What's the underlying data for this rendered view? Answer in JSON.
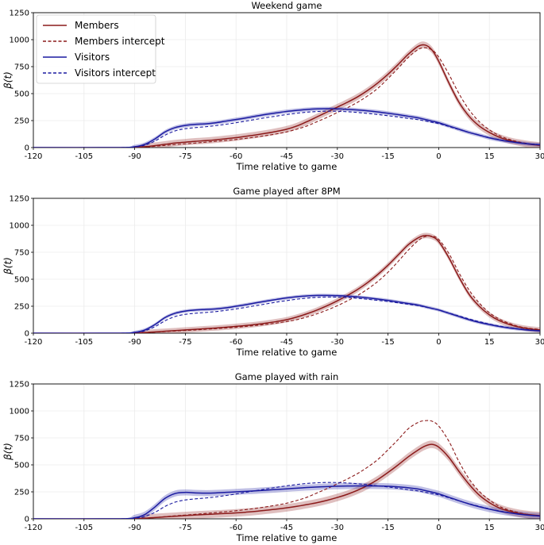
{
  "chart_data": [
    {
      "type": "line",
      "title": "Weekend game",
      "xlabel": "Time relative to game",
      "ylabel": "β(t)",
      "xlim": [
        -120,
        30
      ],
      "ylim": [
        0,
        1250
      ],
      "xticks": [
        -120,
        -105,
        -90,
        -75,
        -60,
        -45,
        -30,
        -15,
        0,
        15,
        30
      ],
      "yticks": [
        0,
        250,
        500,
        750,
        1000,
        1250
      ],
      "grid": true,
      "legend": "top-left",
      "x": [
        -120,
        -95,
        -90,
        -87,
        -84,
        -81,
        -78,
        -75,
        -72,
        -69,
        -66,
        -63,
        -60,
        -57,
        -54,
        -51,
        -48,
        -45,
        -42,
        -39,
        -36,
        -33,
        -30,
        -27,
        -24,
        -21,
        -18,
        -15,
        -12,
        -9,
        -6,
        -4,
        -2,
        0,
        3,
        6,
        9,
        12,
        15,
        18,
        21,
        24,
        27,
        30
      ],
      "series": [
        {
          "name": "Members",
          "color": "#8b1a1a",
          "dash": "solid",
          "band": 30,
          "values": [
            0,
            0,
            3,
            8,
            18,
            30,
            42,
            50,
            58,
            64,
            72,
            82,
            92,
            105,
            118,
            133,
            150,
            170,
            200,
            240,
            285,
            330,
            375,
            420,
            470,
            530,
            600,
            680,
            770,
            865,
            940,
            950,
            905,
            800,
            600,
            420,
            290,
            200,
            140,
            95,
            65,
            45,
            30,
            20
          ]
        },
        {
          "name": "Members intercept",
          "color": "#8b1a1a",
          "dash": "dashed",
          "values": [
            0,
            0,
            2,
            5,
            12,
            20,
            28,
            35,
            42,
            50,
            58,
            66,
            75,
            86,
            98,
            112,
            127,
            145,
            170,
            200,
            240,
            280,
            325,
            370,
            420,
            480,
            550,
            640,
            735,
            835,
            910,
            925,
            905,
            840,
            680,
            500,
            350,
            240,
            165,
            110,
            75,
            50,
            35,
            25
          ]
        },
        {
          "name": "Visitors",
          "color": "#1a1aa0",
          "dash": "solid",
          "band": 18,
          "values": [
            0,
            0,
            8,
            30,
            80,
            145,
            185,
            205,
            215,
            220,
            230,
            245,
            260,
            275,
            292,
            308,
            322,
            335,
            345,
            353,
            358,
            360,
            358,
            354,
            348,
            340,
            330,
            318,
            305,
            290,
            275,
            260,
            245,
            230,
            200,
            170,
            140,
            115,
            90,
            70,
            55,
            42,
            32,
            25
          ]
        },
        {
          "name": "Visitors intercept",
          "color": "#1a1aa0",
          "dash": "dashed",
          "values": [
            0,
            0,
            5,
            22,
            60,
            115,
            155,
            175,
            185,
            193,
            203,
            216,
            230,
            246,
            262,
            278,
            292,
            306,
            318,
            328,
            334,
            337,
            336,
            332,
            325,
            316,
            306,
            295,
            283,
            270,
            258,
            246,
            234,
            222,
            195,
            167,
            140,
            116,
            93,
            73,
            58,
            45,
            35,
            28
          ]
        }
      ]
    },
    {
      "type": "line",
      "title": "Game played after 8PM",
      "xlabel": "Time relative to game",
      "ylabel": "β(t)",
      "xlim": [
        -120,
        30
      ],
      "ylim": [
        0,
        1250
      ],
      "xticks": [
        -120,
        -105,
        -90,
        -75,
        -60,
        -45,
        -30,
        -15,
        0,
        15,
        30
      ],
      "yticks": [
        0,
        250,
        500,
        750,
        1000,
        1250
      ],
      "grid": true,
      "legend": "none",
      "x": [
        -120,
        -95,
        -90,
        -87,
        -84,
        -81,
        -78,
        -75,
        -72,
        -69,
        -66,
        -63,
        -60,
        -57,
        -54,
        -51,
        -48,
        -45,
        -42,
        -39,
        -36,
        -33,
        -30,
        -27,
        -24,
        -21,
        -18,
        -15,
        -12,
        -9,
        -6,
        -4,
        -2,
        0,
        3,
        6,
        9,
        12,
        15,
        18,
        21,
        24,
        27,
        30
      ],
      "series": [
        {
          "name": "Members",
          "color": "#8b1a1a",
          "dash": "solid",
          "band": 25,
          "values": [
            0,
            0,
            2,
            6,
            12,
            18,
            24,
            30,
            36,
            42,
            48,
            55,
            63,
            72,
            82,
            94,
            108,
            125,
            150,
            180,
            215,
            255,
            300,
            350,
            405,
            470,
            545,
            630,
            725,
            820,
            885,
            905,
            895,
            850,
            700,
            520,
            360,
            250,
            170,
            115,
            80,
            55,
            40,
            30
          ]
        },
        {
          "name": "Members intercept",
          "color": "#8b1a1a",
          "dash": "dashed",
          "values": [
            0,
            0,
            2,
            5,
            10,
            15,
            20,
            25,
            30,
            36,
            42,
            48,
            55,
            63,
            72,
            82,
            94,
            108,
            125,
            150,
            180,
            215,
            255,
            300,
            350,
            410,
            480,
            565,
            665,
            770,
            860,
            895,
            900,
            870,
            740,
            560,
            400,
            280,
            190,
            130,
            90,
            60,
            45,
            35
          ]
        },
        {
          "name": "Visitors",
          "color": "#1a1aa0",
          "dash": "solid",
          "band": 15,
          "values": [
            0,
            0,
            8,
            30,
            80,
            145,
            185,
            205,
            215,
            220,
            225,
            235,
            250,
            265,
            282,
            298,
            313,
            327,
            338,
            346,
            350,
            350,
            348,
            343,
            336,
            327,
            316,
            304,
            290,
            275,
            260,
            245,
            230,
            215,
            185,
            155,
            125,
            100,
            80,
            62,
            48,
            37,
            28,
            22
          ]
        },
        {
          "name": "Visitors intercept",
          "color": "#1a1aa0",
          "dash": "dashed",
          "values": [
            0,
            0,
            5,
            22,
            60,
            115,
            155,
            175,
            185,
            192,
            200,
            212,
            225,
            240,
            256,
            272,
            288,
            302,
            315,
            325,
            332,
            335,
            334,
            330,
            323,
            314,
            304,
            293,
            281,
            268,
            255,
            242,
            229,
            216,
            188,
            160,
            132,
            107,
            85,
            66,
            51,
            40,
            31,
            24
          ]
        }
      ]
    },
    {
      "type": "line",
      "title": "Game played with rain",
      "xlabel": "Time relative to game",
      "ylabel": "β(t)",
      "xlim": [
        -120,
        30
      ],
      "ylim": [
        0,
        1250
      ],
      "xticks": [
        -120,
        -105,
        -90,
        -75,
        -60,
        -45,
        -30,
        -15,
        0,
        15,
        30
      ],
      "yticks": [
        0,
        250,
        500,
        750,
        1000,
        1250
      ],
      "grid": true,
      "legend": "none",
      "x": [
        -120,
        -95,
        -90,
        -87,
        -84,
        -81,
        -78,
        -75,
        -72,
        -69,
        -66,
        -63,
        -60,
        -57,
        -54,
        -51,
        -48,
        -45,
        -42,
        -39,
        -36,
        -33,
        -30,
        -27,
        -24,
        -21,
        -18,
        -15,
        -12,
        -9,
        -6,
        -4,
        -2,
        0,
        3,
        6,
        9,
        12,
        15,
        18,
        21,
        24,
        27,
        30
      ],
      "series": [
        {
          "name": "Members",
          "color": "#8b1a1a",
          "dash": "solid",
          "band": 35,
          "values": [
            0,
            0,
            2,
            6,
            12,
            18,
            24,
            30,
            36,
            40,
            45,
            50,
            55,
            62,
            70,
            80,
            90,
            102,
            116,
            132,
            150,
            172,
            198,
            228,
            265,
            310,
            365,
            430,
            500,
            575,
            640,
            675,
            690,
            665,
            570,
            440,
            320,
            220,
            150,
            100,
            70,
            50,
            38,
            30
          ]
        },
        {
          "name": "Members intercept",
          "color": "#8b1a1a",
          "dash": "dashed",
          "values": [
            0,
            0,
            2,
            5,
            12,
            20,
            28,
            35,
            42,
            50,
            58,
            66,
            75,
            86,
            98,
            112,
            127,
            145,
            170,
            200,
            240,
            280,
            325,
            370,
            420,
            480,
            550,
            640,
            735,
            835,
            895,
            910,
            905,
            860,
            720,
            530,
            370,
            255,
            175,
            115,
            80,
            55,
            38,
            28
          ]
        },
        {
          "name": "Visitors",
          "color": "#1a1aa0",
          "dash": "solid",
          "band": 28,
          "values": [
            0,
            0,
            10,
            40,
            110,
            190,
            235,
            245,
            240,
            238,
            240,
            245,
            250,
            255,
            260,
            266,
            272,
            278,
            284,
            290,
            295,
            299,
            302,
            304,
            305,
            305,
            304,
            301,
            296,
            288,
            276,
            262,
            248,
            232,
            200,
            168,
            138,
            112,
            90,
            70,
            55,
            42,
            32,
            25
          ]
        },
        {
          "name": "Visitors intercept",
          "color": "#1a1aa0",
          "dash": "dashed",
          "values": [
            0,
            0,
            5,
            22,
            60,
            115,
            155,
            175,
            185,
            193,
            203,
            216,
            230,
            246,
            262,
            278,
            292,
            306,
            318,
            328,
            334,
            337,
            336,
            332,
            325,
            316,
            306,
            295,
            283,
            270,
            258,
            246,
            234,
            222,
            195,
            167,
            140,
            116,
            93,
            73,
            58,
            45,
            35,
            28
          ]
        }
      ]
    }
  ]
}
